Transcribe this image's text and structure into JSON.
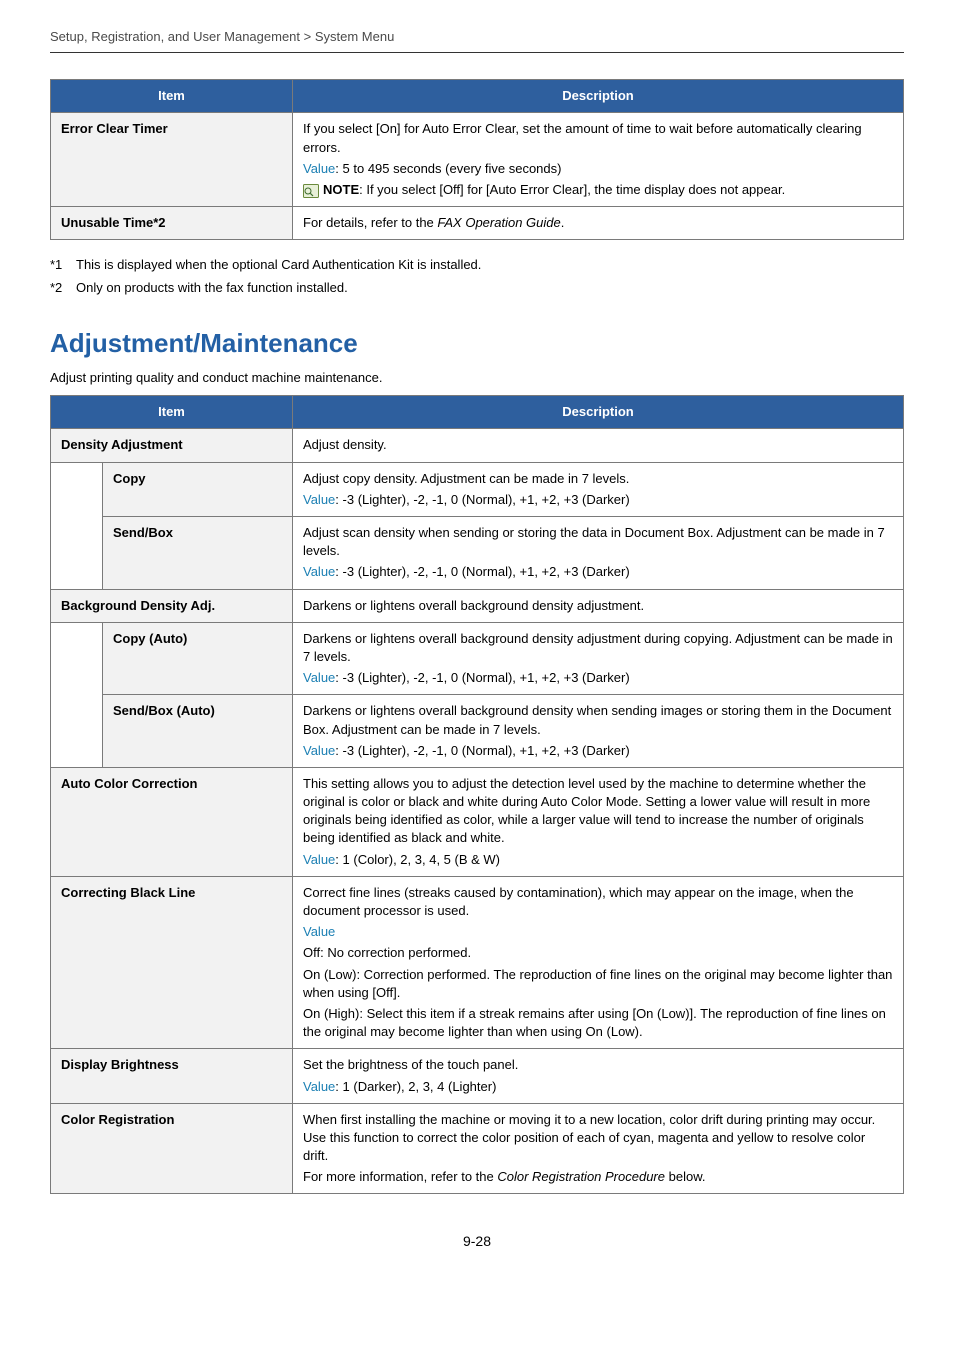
{
  "breadcrumb": "Setup, Registration, and User Management > System Menu",
  "headers": {
    "item": "Item",
    "description": "Description"
  },
  "table1": {
    "rows": [
      {
        "item": "Error Clear Timer",
        "lines": [
          {
            "text": "If you select [On] for Auto Error Clear, set the amount of time to wait before automatically clearing errors."
          },
          {
            "value_label": "Value",
            "text": ": 5 to 495 seconds (every five seconds)"
          },
          {
            "note_icon": true,
            "bold_lead": "NOTE",
            "text": ": If you select [Off] for [Auto Error Clear], the time display does not appear."
          }
        ]
      },
      {
        "item": "Unusable Time*2",
        "lines": [
          {
            "text_pre": "For details, refer to the ",
            "italic": "FAX Operation Guide",
            "text_post": "."
          }
        ]
      }
    ]
  },
  "footnotes": [
    {
      "marker": "*1",
      "text": "This is displayed when the optional Card Authentication Kit is installed."
    },
    {
      "marker": "*2",
      "text": "Only on products with the fax function installed."
    }
  ],
  "section": {
    "title": "Adjustment/Maintenance",
    "intro": "Adjust printing quality and conduct machine maintenance."
  },
  "table2": {
    "groups": [
      {
        "item": "Density Adjustment",
        "desc_lines": [
          {
            "text": "Adjust density."
          }
        ],
        "subs": [
          {
            "item": "Copy",
            "lines": [
              {
                "text": "Adjust copy density. Adjustment can be made in 7 levels."
              },
              {
                "value_label": "Value",
                "text": ": -3 (Lighter), -2, -1, 0 (Normal), +1, +2, +3 (Darker)"
              }
            ]
          },
          {
            "item": "Send/Box",
            "lines": [
              {
                "text": "Adjust scan density when sending or storing the data in Document Box. Adjustment can be made in 7 levels."
              },
              {
                "value_label": "Value",
                "text": ": -3 (Lighter), -2, -1, 0 (Normal), +1, +2, +3 (Darker)"
              }
            ]
          }
        ]
      },
      {
        "item": "Background Density Adj.",
        "desc_lines": [
          {
            "text": "Darkens or lightens overall background density adjustment."
          }
        ],
        "subs": [
          {
            "item": "Copy (Auto)",
            "lines": [
              {
                "text": "Darkens or lightens overall background density adjustment during copying. Adjustment can be made in 7 levels."
              },
              {
                "value_label": "Value",
                "text": ": -3 (Lighter), -2, -1, 0 (Normal), +1, +2, +3 (Darker)"
              }
            ]
          },
          {
            "item": "Send/Box (Auto)",
            "lines": [
              {
                "text": "Darkens or lightens overall background density when sending images or storing them in the Document Box. Adjustment can be made in 7 levels."
              },
              {
                "value_label": "Value",
                "text": ": -3 (Lighter), -2, -1, 0 (Normal), +1, +2, +3 (Darker)"
              }
            ]
          }
        ]
      },
      {
        "item": "Auto Color Correction",
        "desc_lines": [
          {
            "text": "This setting allows you to adjust the detection level used by the machine to determine whether the original is color or black and white during Auto Color Mode. Setting a lower value will result in more originals being identified as color, while a larger value will tend to increase the number of originals being identified as black and white."
          },
          {
            "value_label": "Value",
            "text": ": 1 (Color), 2, 3, 4, 5 (B & W)"
          }
        ]
      },
      {
        "item": "Correcting Black Line",
        "desc_lines": [
          {
            "text": "Correct fine lines (streaks caused by contamination), which may appear on the image, when the document processor is used."
          },
          {
            "value_label": "Value"
          },
          {
            "text": "Off: No correction performed."
          },
          {
            "text": "On (Low): Correction performed. The reproduction of fine lines on the original may become lighter than when using [Off]."
          },
          {
            "text": "On (High): Select this item if a streak remains after using [On (Low)]. The reproduction of fine lines on the original may become lighter than when using On (Low)."
          }
        ]
      },
      {
        "item": "Display Brightness",
        "desc_lines": [
          {
            "text": "Set the brightness of the touch panel."
          },
          {
            "value_label": "Value",
            "text": ": 1 (Darker), 2, 3, 4 (Lighter)"
          }
        ]
      },
      {
        "item": "Color Registration",
        "desc_lines": [
          {
            "text": "When first installing the machine or moving it to a new location, color drift during printing may occur. Use this function to correct the color position of each of cyan, magenta and yellow to resolve color drift."
          },
          {
            "text_pre": "For more information, refer to the ",
            "italic": "Color Registration Procedure",
            "text_post": " below."
          }
        ]
      }
    ]
  },
  "page_number": "9-28",
  "colors": {
    "header_bg": "#2e5f9e",
    "title_color": "#2360a5",
    "value_color": "#1b7fb3",
    "border_color": "#7a7a7a",
    "item_bg": "#f2f2f2"
  }
}
